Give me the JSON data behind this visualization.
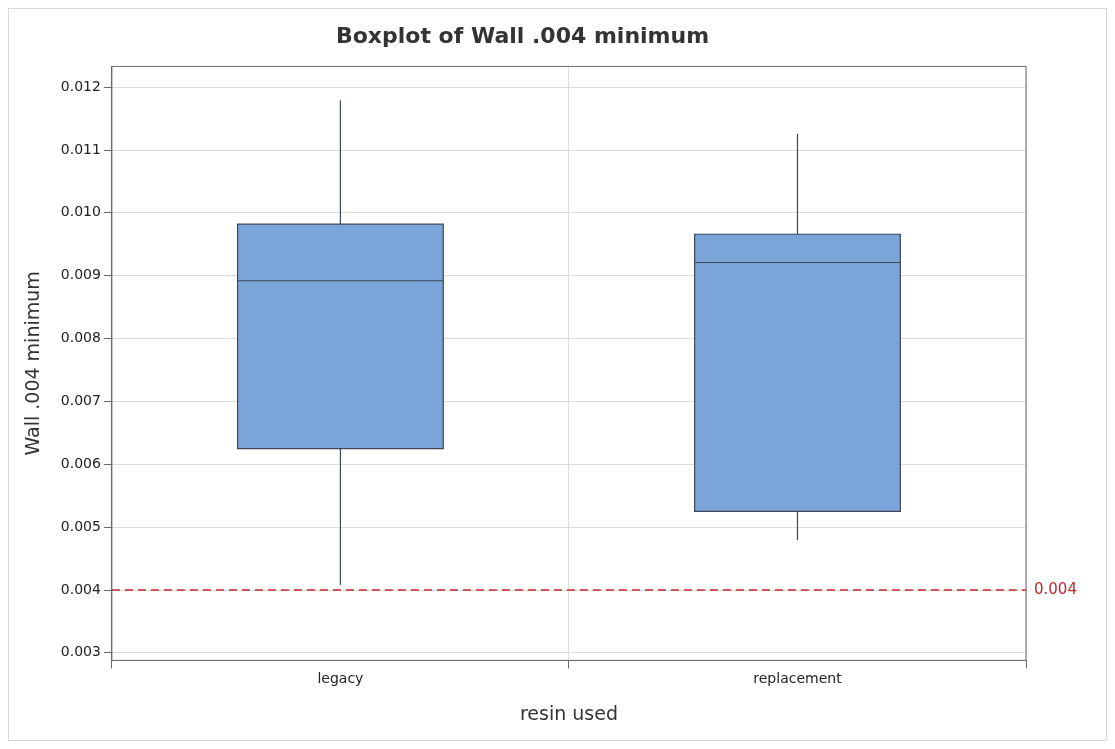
{
  "chart_data": {
    "type": "box",
    "title": "Boxplot of Wall .004 minimum",
    "xlabel": "resin used",
    "ylabel": "Wall .004 minimum",
    "categories": [
      "legacy",
      "replacement"
    ],
    "series": [
      {
        "color": "#7ba5d8",
        "boxes": [
          {
            "low": 0.00408,
            "q1": 0.00625,
            "median": 0.00892,
            "q3": 0.00982,
            "high": 0.01179
          },
          {
            "low": 0.00479,
            "q1": 0.00525,
            "median": 0.00921,
            "q3": 0.00966,
            "high": 0.01126
          }
        ]
      }
    ],
    "ylim": [
      0.00288,
      0.01233
    ],
    "yticks": [
      0.003,
      0.004,
      0.005,
      0.006,
      0.007,
      0.008,
      0.009,
      {
        "value": 0.01,
        "label": "0.010"
      },
      0.011,
      0.012
    ],
    "ref_lines": [
      {
        "axis": "y",
        "value": 0.004,
        "label": "0.004",
        "color": "#c0282d",
        "line_style": "dashed"
      }
    ],
    "grid": true
  }
}
